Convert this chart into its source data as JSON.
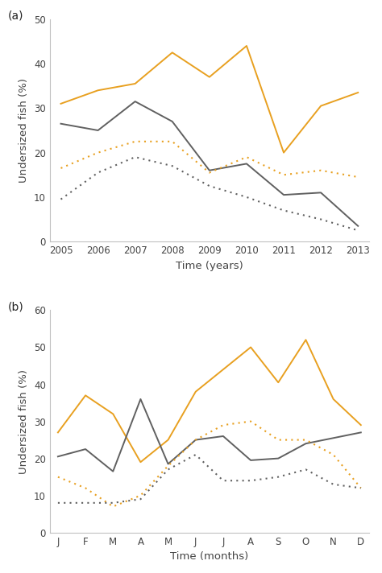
{
  "panel_a": {
    "years": [
      2005,
      2006,
      2007,
      2008,
      2009,
      2010,
      2011,
      2012,
      2013
    ],
    "orange_solid": [
      31,
      34,
      35.5,
      42.5,
      37,
      44,
      20,
      30.5,
      33.5
    ],
    "gray_solid": [
      26.5,
      25,
      31.5,
      27,
      16,
      17.5,
      10.5,
      11,
      3.5
    ],
    "orange_dashed": [
      16.5,
      20,
      22.5,
      22.5,
      15.5,
      19,
      15,
      16,
      14.5
    ],
    "gray_dashed": [
      9.5,
      15.5,
      19,
      17,
      12.5,
      10,
      7,
      5,
      2.5
    ],
    "ylim": [
      0,
      50
    ],
    "yticks": [
      0,
      10,
      20,
      30,
      40,
      50
    ],
    "ylabel": "Undersized fish (%)",
    "xlabel": "Time (years)",
    "label": "(a)"
  },
  "panel_b": {
    "months": [
      "J",
      "F",
      "M",
      "A",
      "M",
      "J",
      "J",
      "A",
      "S",
      "O",
      "N",
      "D"
    ],
    "orange_solid": [
      27,
      37,
      32,
      19,
      25,
      38,
      44,
      50,
      40.5,
      52,
      36,
      29
    ],
    "gray_solid": [
      20.5,
      22.5,
      16.5,
      36,
      18.5,
      25,
      26,
      19.5,
      20,
      24,
      25.5,
      27
    ],
    "orange_dashed": [
      15,
      12,
      7,
      10,
      18,
      25,
      29,
      30,
      25,
      25,
      21,
      12
    ],
    "gray_dashed": [
      8,
      8,
      8,
      9,
      17,
      21,
      14,
      14,
      15,
      17,
      13,
      12
    ],
    "ylim": [
      0,
      60
    ],
    "yticks": [
      0,
      10,
      20,
      30,
      40,
      50,
      60
    ],
    "ylabel": "Undersized fish (%)",
    "xlabel": "Time (months)",
    "label": "(b)"
  },
  "orange_color": "#E8A020",
  "gray_color": "#606060",
  "linewidth": 1.4,
  "dotted_linewidth": 1.5,
  "spine_color": "#c0c0c0",
  "tick_color": "#444444",
  "tick_fontsize": 8.5,
  "label_fontsize": 9.5,
  "panel_label_fontsize": 10
}
